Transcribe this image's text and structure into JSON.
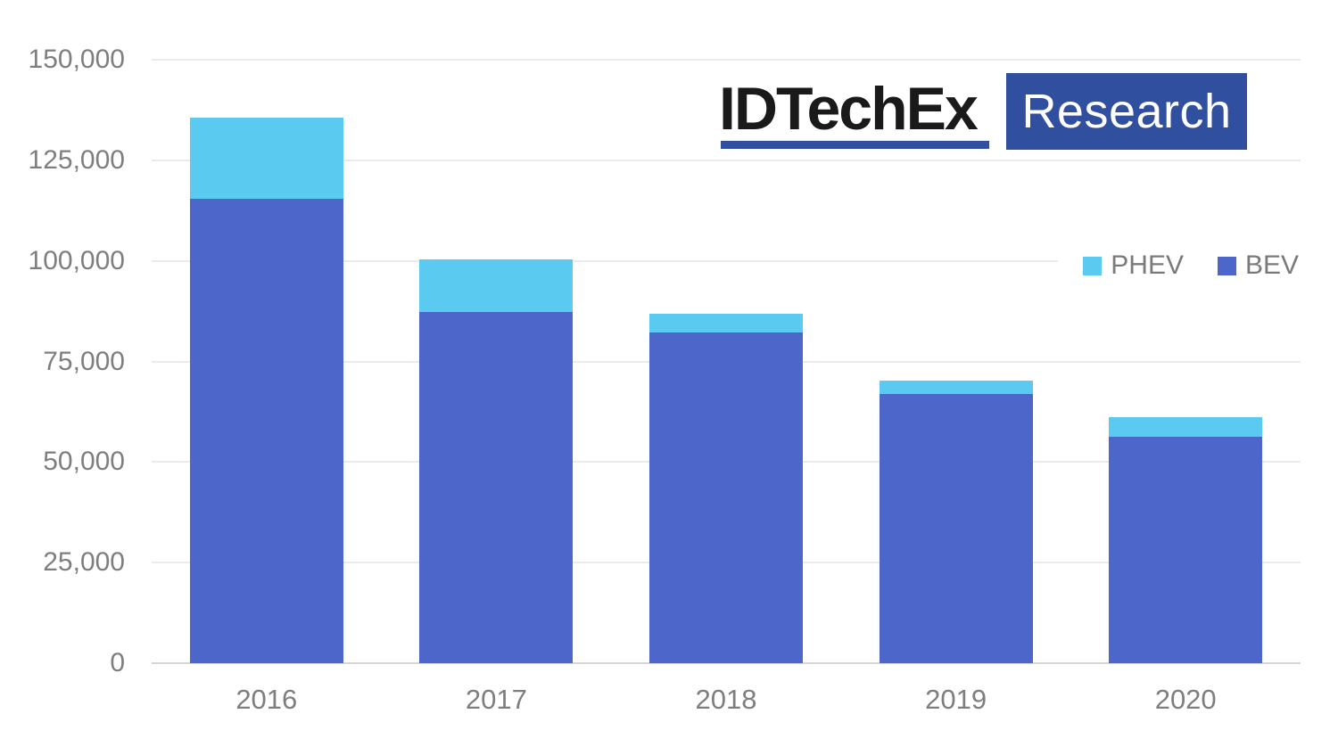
{
  "logo": {
    "brand": "IDTechEx",
    "sub": "Research",
    "accent_blue": "#30509F",
    "brand_text_color": "#1A1A1A"
  },
  "legend": [
    {
      "label": "PHEV",
      "color": "#5BCAF0"
    },
    {
      "label": "BEV",
      "color": "#4C66C9"
    }
  ],
  "chart_data": {
    "type": "bar",
    "stacked": true,
    "title": "",
    "xlabel": "",
    "ylabel": "",
    "categories": [
      "2016",
      "2017",
      "2018",
      "2019",
      "2020"
    ],
    "series": [
      {
        "name": "BEV",
        "color": "#4C66C9",
        "values": [
          115500,
          87400,
          82300,
          66900,
          56300
        ]
      },
      {
        "name": "PHEV",
        "color": "#5BCAF0",
        "values": [
          20000,
          13000,
          4600,
          3400,
          4900
        ]
      }
    ],
    "ylim": [
      0,
      150000
    ],
    "ytick_interval": 25000,
    "ytick_labels": [
      "150,000",
      "125,000",
      "100,000",
      "75,000",
      "50,000",
      "25,000",
      "0"
    ],
    "grid": true,
    "legend_position": "top-right",
    "axis_text_color": "#7E7E7E",
    "gridline_color": "#EBEBEB",
    "baseline_color": "#D6D6D6"
  }
}
